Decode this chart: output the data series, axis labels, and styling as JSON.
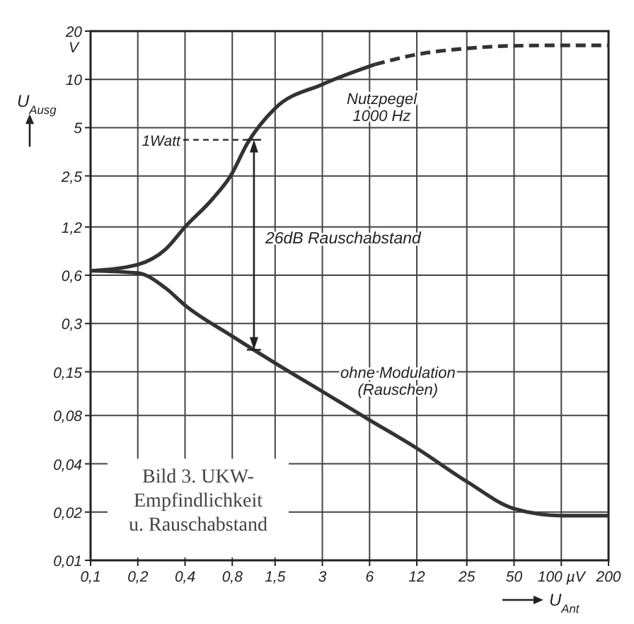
{
  "chart_data": {
    "type": "line",
    "log": "xy",
    "grid": true,
    "xlabel": "U$_{Ant}$",
    "ylabel": "U$_{Ausg}$",
    "xlim": [
      0.1,
      200
    ],
    "ylim": [
      0.01,
      20
    ],
    "xticks": [
      {
        "value": 0.1,
        "label": "0,1"
      },
      {
        "value": 0.2,
        "label": "0,2"
      },
      {
        "value": 0.4,
        "label": "0,4"
      },
      {
        "value": 0.8,
        "label": "0,8"
      },
      {
        "value": 1.5,
        "label": "1,5"
      },
      3,
      6,
      12,
      25,
      50,
      {
        "value": 100,
        "label": "100 µV"
      },
      200
    ],
    "yticks": [
      {
        "value": 0.01,
        "label": "0,01"
      },
      {
        "value": 0.02,
        "label": "0,02"
      },
      {
        "value": 0.04,
        "label": "0,04"
      },
      {
        "value": 0.08,
        "label": "0,08"
      },
      {
        "value": 0.15,
        "label": "0,15"
      },
      {
        "value": 0.3,
        "label": "0,3"
      },
      {
        "value": 0.6,
        "label": "0,6"
      },
      {
        "value": 1.2,
        "label": "1,2"
      },
      {
        "value": 2.5,
        "label": "2,5"
      },
      5,
      10,
      20
    ],
    "series": [
      {
        "name": "Nutzpegel\n1000 Hz",
        "color": "#333333",
        "line_style": "solid",
        "x": [
          0.1,
          0.2,
          0.3,
          0.4,
          0.6,
          0.78,
          1.0,
          1.5,
          3,
          6.5
        ],
        "values": [
          0.64,
          0.7,
          0.87,
          1.2,
          1.8,
          2.5,
          4.0,
          6.6,
          9.3,
          12.4
        ]
      },
      {
        "color": "#333333",
        "line_style": "dashed",
        "x": [
          6.5,
          12,
          25,
          50,
          100,
          200
        ],
        "values": [
          12.4,
          14.3,
          15.6,
          16.2,
          16.3,
          16.3
        ]
      },
      {
        "name": "ohne Modulation\n(Rauschen)",
        "color": "#333333",
        "line_style": "solid",
        "x": [
          0.1,
          0.2,
          0.3,
          0.4,
          0.8,
          1.5,
          3,
          6,
          12,
          25,
          50,
          100,
          200
        ],
        "values": [
          0.64,
          0.62,
          0.5,
          0.39,
          0.25,
          0.17,
          0.113,
          0.075,
          0.05,
          0.031,
          0.021,
          0.019,
          0.019
        ]
      }
    ],
    "annotations": [
      "V",
      {
        "text": "1Watt",
        "x": 1.1,
        "y": 4.2
      },
      "26dB Rauschabstand",
      "Bild 3. UKW-\nEmpfindlichkeit\nu. Rauschabstand"
    ]
  }
}
